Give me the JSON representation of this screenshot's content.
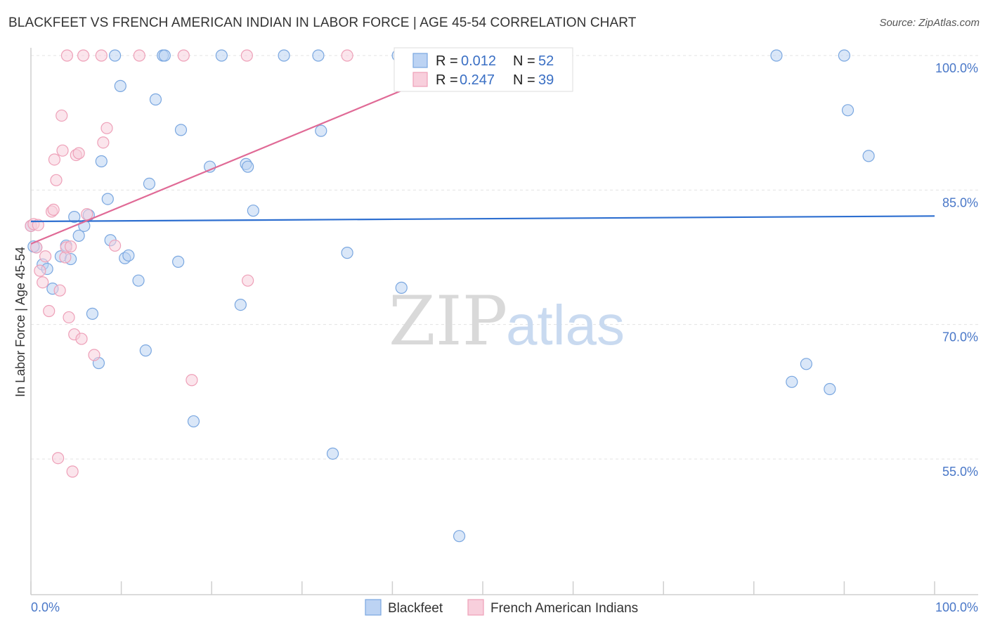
{
  "chart_data": {
    "type": "scatter",
    "title": "BLACKFEET VS FRENCH AMERICAN INDIAN IN LABOR FORCE | AGE 45-54 CORRELATION CHART",
    "source": "Source: ZipAtlas.com",
    "xlabel": "",
    "ylabel": "In Labor Force | Age 45-54",
    "xlim": [
      0,
      100
    ],
    "ylim": [
      40,
      102
    ],
    "x_tick_labels": [
      "0.0%",
      "100.0%"
    ],
    "y_ticks": [
      {
        "value": 100,
        "label": "100.0%"
      },
      {
        "value": 85,
        "label": "85.0%"
      },
      {
        "value": 70,
        "label": "70.0%"
      },
      {
        "value": 55,
        "label": "55.0%"
      }
    ],
    "watermark": {
      "zip": "ZIP",
      "atlas": "atlas"
    },
    "series": [
      {
        "name": "Blackfeet",
        "color": "#7aa7e0",
        "fill": "#bcd3f3",
        "line_color": "#2e6fd0",
        "r_label": "R =",
        "r_value": "0.012",
        "n_label": "N =",
        "n_value": "52",
        "trend": {
          "x": [
            0,
            100
          ],
          "y": [
            81.5,
            82.1
          ]
        },
        "points": [
          [
            0.0,
            81.0
          ],
          [
            0.6,
            78.6
          ],
          [
            1.3,
            76.7
          ],
          [
            1.8,
            76.2
          ],
          [
            2.4,
            74.0
          ],
          [
            3.3,
            77.6
          ],
          [
            3.9,
            78.8
          ],
          [
            4.4,
            77.3
          ],
          [
            4.8,
            82.0
          ],
          [
            5.3,
            79.9
          ],
          [
            5.9,
            81.0
          ],
          [
            6.4,
            82.2
          ],
          [
            6.8,
            71.2
          ],
          [
            7.5,
            65.7
          ],
          [
            7.8,
            88.2
          ],
          [
            8.5,
            84.0
          ],
          [
            8.8,
            79.4
          ],
          [
            9.3,
            100.0
          ],
          [
            9.9,
            96.6
          ],
          [
            10.4,
            77.4
          ],
          [
            10.8,
            77.7
          ],
          [
            11.9,
            74.9
          ],
          [
            12.7,
            67.1
          ],
          [
            13.1,
            85.7
          ],
          [
            13.8,
            95.1
          ],
          [
            14.6,
            100.0
          ],
          [
            14.8,
            100.0
          ],
          [
            16.3,
            77.0
          ],
          [
            16.6,
            91.7
          ],
          [
            18.0,
            59.2
          ],
          [
            19.8,
            87.6
          ],
          [
            21.1,
            100.0
          ],
          [
            23.2,
            72.2
          ],
          [
            23.8,
            87.9
          ],
          [
            24.0,
            87.6
          ],
          [
            24.6,
            82.7
          ],
          [
            28.0,
            100.0
          ],
          [
            31.8,
            100.0
          ],
          [
            32.1,
            91.6
          ],
          [
            33.4,
            55.6
          ],
          [
            35.0,
            78.0
          ],
          [
            40.6,
            100.0
          ],
          [
            41.0,
            74.1
          ],
          [
            47.4,
            46.4
          ],
          [
            82.5,
            100.0
          ],
          [
            84.2,
            63.6
          ],
          [
            85.8,
            65.6
          ],
          [
            88.4,
            62.8
          ],
          [
            90.0,
            100.0
          ],
          [
            90.4,
            93.9
          ],
          [
            92.7,
            88.8
          ],
          [
            0.3,
            78.7
          ]
        ]
      },
      {
        "name": "French American Indians",
        "color": "#eea0b8",
        "fill": "#f8cfdc",
        "line_color": "#e06a96",
        "r_label": "R =",
        "r_value": "0.247",
        "n_label": "N =",
        "n_value": "39",
        "trend": {
          "x": [
            0,
            42
          ],
          "y": [
            79.0,
            96.5
          ]
        },
        "points": [
          [
            0.0,
            81.0
          ],
          [
            0.3,
            81.2
          ],
          [
            0.6,
            78.6
          ],
          [
            1.0,
            76.0
          ],
          [
            1.3,
            74.7
          ],
          [
            1.6,
            77.6
          ],
          [
            2.0,
            71.5
          ],
          [
            2.3,
            82.6
          ],
          [
            2.5,
            82.8
          ],
          [
            2.6,
            88.4
          ],
          [
            2.8,
            86.1
          ],
          [
            3.0,
            55.1
          ],
          [
            3.2,
            73.8
          ],
          [
            3.4,
            93.3
          ],
          [
            3.5,
            89.4
          ],
          [
            3.8,
            77.5
          ],
          [
            3.9,
            78.6
          ],
          [
            4.0,
            100.0
          ],
          [
            4.2,
            70.8
          ],
          [
            4.4,
            78.7
          ],
          [
            4.6,
            53.6
          ],
          [
            4.8,
            68.9
          ],
          [
            5.0,
            88.9
          ],
          [
            5.3,
            89.1
          ],
          [
            5.6,
            68.4
          ],
          [
            5.8,
            100.0
          ],
          [
            6.2,
            82.3
          ],
          [
            7.0,
            66.6
          ],
          [
            7.8,
            100.0
          ],
          [
            8.0,
            90.3
          ],
          [
            8.4,
            91.9
          ],
          [
            9.3,
            78.8
          ],
          [
            12.0,
            100.0
          ],
          [
            16.9,
            100.0
          ],
          [
            17.8,
            63.8
          ],
          [
            23.9,
            100.0
          ],
          [
            24.0,
            74.9
          ],
          [
            35.0,
            100.0
          ],
          [
            0.8,
            81.1
          ]
        ]
      }
    ]
  }
}
